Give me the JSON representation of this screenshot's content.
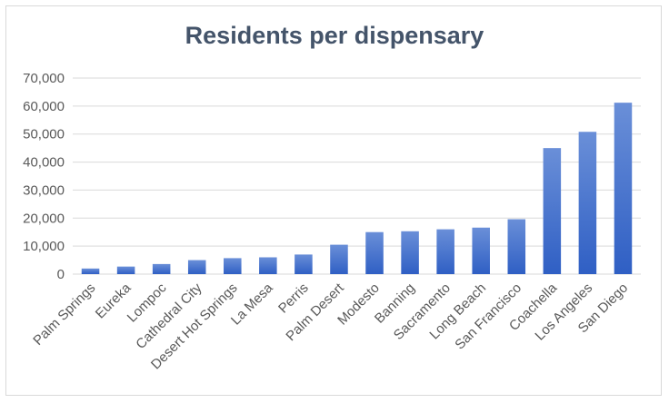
{
  "chart_data": {
    "type": "bar",
    "title": "Residents per dispensary",
    "xlabel": "",
    "ylabel": "",
    "categories": [
      "Palm Springs",
      "Eureka",
      "Lompoc",
      "Cathedral City",
      "Desert Hot Springs",
      "La Mesa",
      "Perris",
      "Palm Desert",
      "Modesto",
      "Banning",
      "Sacramento",
      "Long Beach",
      "San Francisco",
      "Coachella",
      "Los Angeles",
      "San Diego"
    ],
    "values": [
      2000,
      2700,
      3600,
      5000,
      5700,
      6000,
      7000,
      10500,
      15000,
      15300,
      16000,
      16600,
      19600,
      45000,
      50800,
      61200
    ],
    "ylim": [
      0,
      70000
    ],
    "yticks": [
      0,
      10000,
      20000,
      30000,
      40000,
      50000,
      60000,
      70000
    ],
    "ytick_labels": [
      "0",
      "10,000",
      "20,000",
      "30,000",
      "40,000",
      "50,000",
      "60,000",
      "70,000"
    ],
    "grid": true,
    "colors": {
      "bar_top": "#6a8fd8",
      "bar_bottom": "#2f5fc4",
      "grid": "#d9d9d9",
      "text": "#595959",
      "title": "#44546a"
    }
  }
}
